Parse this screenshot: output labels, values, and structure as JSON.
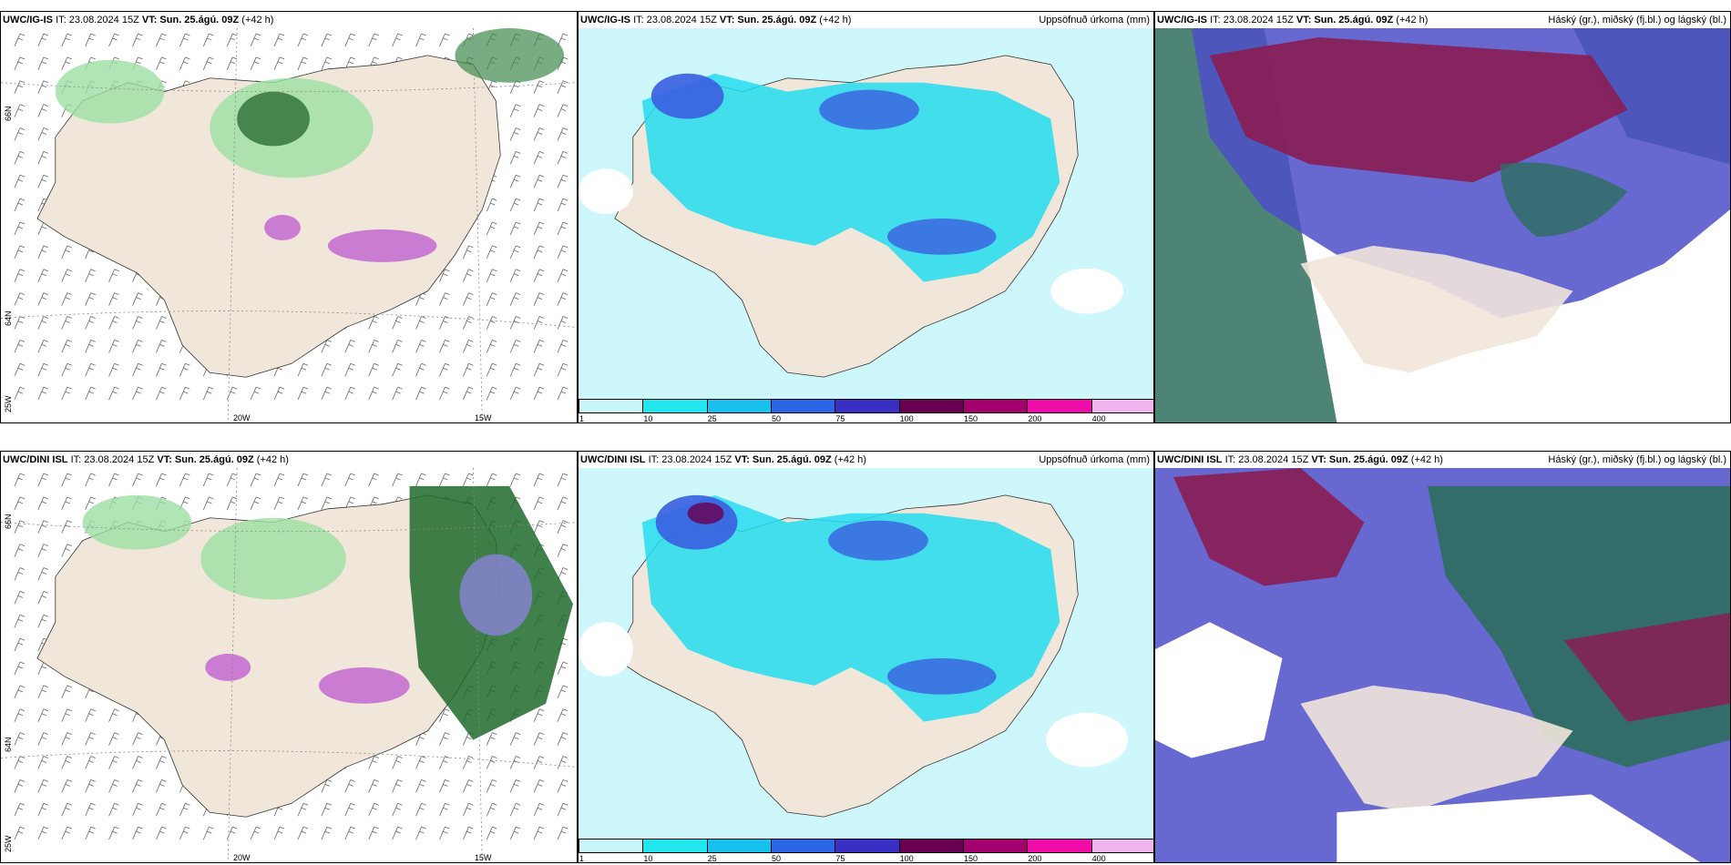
{
  "rows": [
    {
      "model": "UWC/IG-IS",
      "it": "IT: 23.08.2024 15Z",
      "vt_label": "VT:",
      "vt": "Sun. 25.ágú. 09Z",
      "lead": "(+42 h)",
      "lat_labels": [
        "66N",
        "64N",
        "25W"
      ],
      "lon_labels": [
        "20W",
        "15W"
      ],
      "precip_title": "Uppsöfnuð úrkoma (mm)",
      "cloud_title": "Háský (gr.), miðský (fj.bl.) og lágský (bl.)"
    },
    {
      "model": "UWC/DINI ISL",
      "it": "IT: 23.08.2024 15Z",
      "vt_label": "VT:",
      "vt": "Sun. 25.ágú. 09Z",
      "lead": "(+42 h)",
      "lat_labels": [
        "66N",
        "64N",
        "25W"
      ],
      "lon_labels": [
        "20W",
        "15W"
      ],
      "precip_title": "Uppsöfnuð úrkoma (mm)",
      "cloud_title": "Háský (gr.), miðský (fj.bl.) og lágský (bl.)"
    }
  ],
  "colorbar": {
    "ticks": [
      "1",
      "10",
      "25",
      "50",
      "75",
      "100",
      "150",
      "200",
      "400"
    ],
    "colors": [
      "#c8f6f8",
      "#22e6ee",
      "#18c0ee",
      "#2a66e6",
      "#3a2fc4",
      "#6a0050",
      "#a4006e",
      "#f00ca8",
      "#f0b4ee"
    ]
  },
  "colors": {
    "land": "#f1e6da",
    "precip_low": "#bdf4fa",
    "precip_mid": "#24dcee",
    "precip_high": "#3a5ee0",
    "cloud_high": "#8a1d52",
    "cloud_mid": "#4c4ec8",
    "cloud_low": "#2e6e5e",
    "wind_green": "#9ce0a2"
  }
}
